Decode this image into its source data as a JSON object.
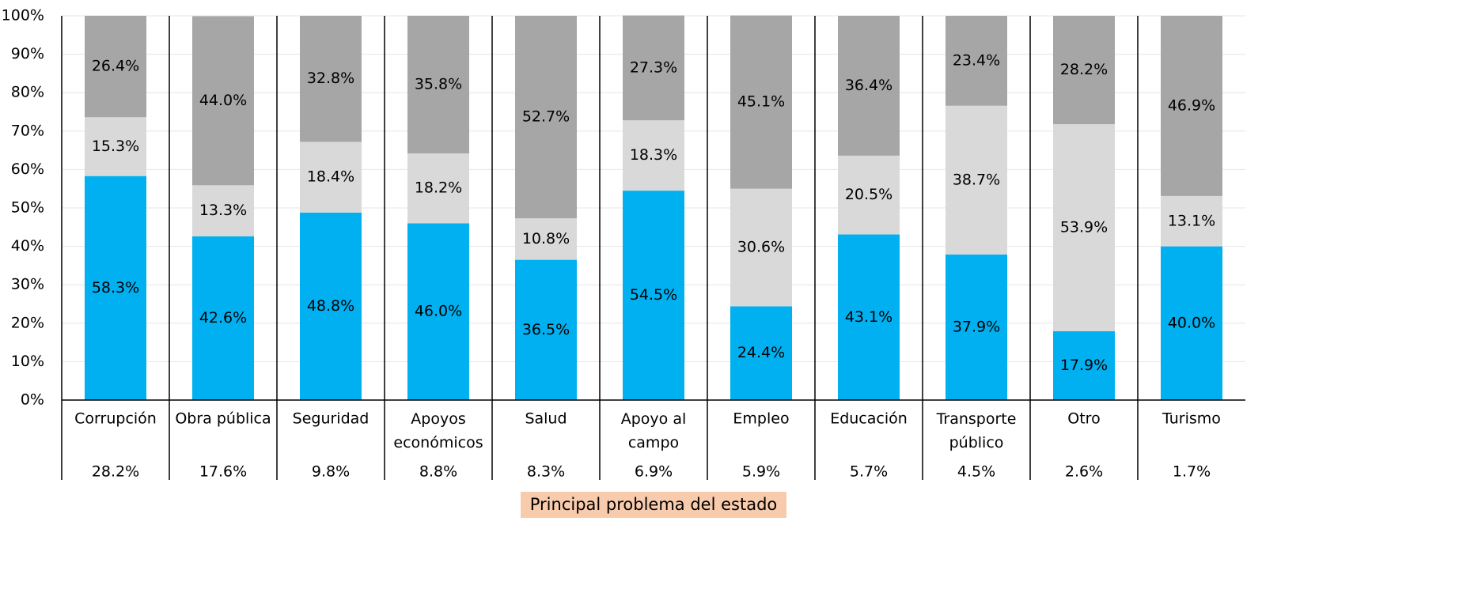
{
  "chart_data": {
    "type": "stacked_bar",
    "categories": [
      "Corrupción",
      "Obra pública",
      "Seguridad",
      "Apoyos económicos",
      "Salud",
      "Apoyo al campo",
      "Empleo",
      "Educación",
      "Transporte público",
      "Otro",
      "Turismo"
    ],
    "series": [
      {
        "color": "#00b0f0",
        "values": [
          58.3,
          42.6,
          48.8,
          46.0,
          36.5,
          54.5,
          24.4,
          43.1,
          37.9,
          17.9,
          40.0
        ],
        "value_labels": [
          "58.3%",
          "42.6%",
          "48.8%",
          "46.0%",
          "36.5%",
          "54.5%",
          "24.4%",
          "43.1%",
          "37.9%",
          "17.9%",
          "40.0%"
        ]
      },
      {
        "color": "#d9d9d9",
        "values": [
          15.3,
          13.3,
          18.4,
          18.2,
          10.8,
          18.3,
          30.6,
          20.5,
          38.7,
          53.9,
          13.1
        ],
        "value_labels": [
          "15.3%",
          "13.3%",
          "18.4%",
          "18.2%",
          "10.8%",
          "18.3%",
          "30.6%",
          "20.5%",
          "38.7%",
          "53.9%",
          "13.1%"
        ]
      },
      {
        "color": "#a6a6a6",
        "values": [
          26.4,
          44.0,
          32.8,
          35.8,
          52.7,
          27.3,
          45.1,
          36.4,
          23.4,
          28.2,
          46.9
        ],
        "value_labels": [
          "26.4%",
          "44.0%",
          "32.8%",
          "35.8%",
          "52.7%",
          "27.3%",
          "45.1%",
          "36.4%",
          "23.4%",
          "28.2%",
          "46.9%"
        ]
      }
    ],
    "shares": {
      "values": [
        28.2,
        17.6,
        9.8,
        8.8,
        8.3,
        6.9,
        5.9,
        5.7,
        4.5,
        2.6,
        1.7
      ],
      "value_labels": [
        "28.2%",
        "17.6%",
        "9.8%",
        "8.8%",
        "8.3%",
        "6.9%",
        "5.9%",
        "5.7%",
        "4.5%",
        "2.6%",
        "1.7%"
      ]
    },
    "x_label": "Principal problema del estado",
    "ylim": [
      0,
      100
    ],
    "yticks": [
      {
        "value": 0,
        "label": "0%"
      },
      {
        "value": 10,
        "label": "10%"
      },
      {
        "value": 20,
        "label": "20%"
      },
      {
        "value": 30,
        "label": "30%"
      },
      {
        "value": 40,
        "label": "40%"
      },
      {
        "value": 50,
        "label": "50%"
      },
      {
        "value": 60,
        "label": "60%"
      },
      {
        "value": 70,
        "label": "70%"
      },
      {
        "value": 80,
        "label": "80%"
      },
      {
        "value": 90,
        "label": "90%"
      },
      {
        "value": 100,
        "label": "100%"
      }
    ],
    "grid": true
  }
}
